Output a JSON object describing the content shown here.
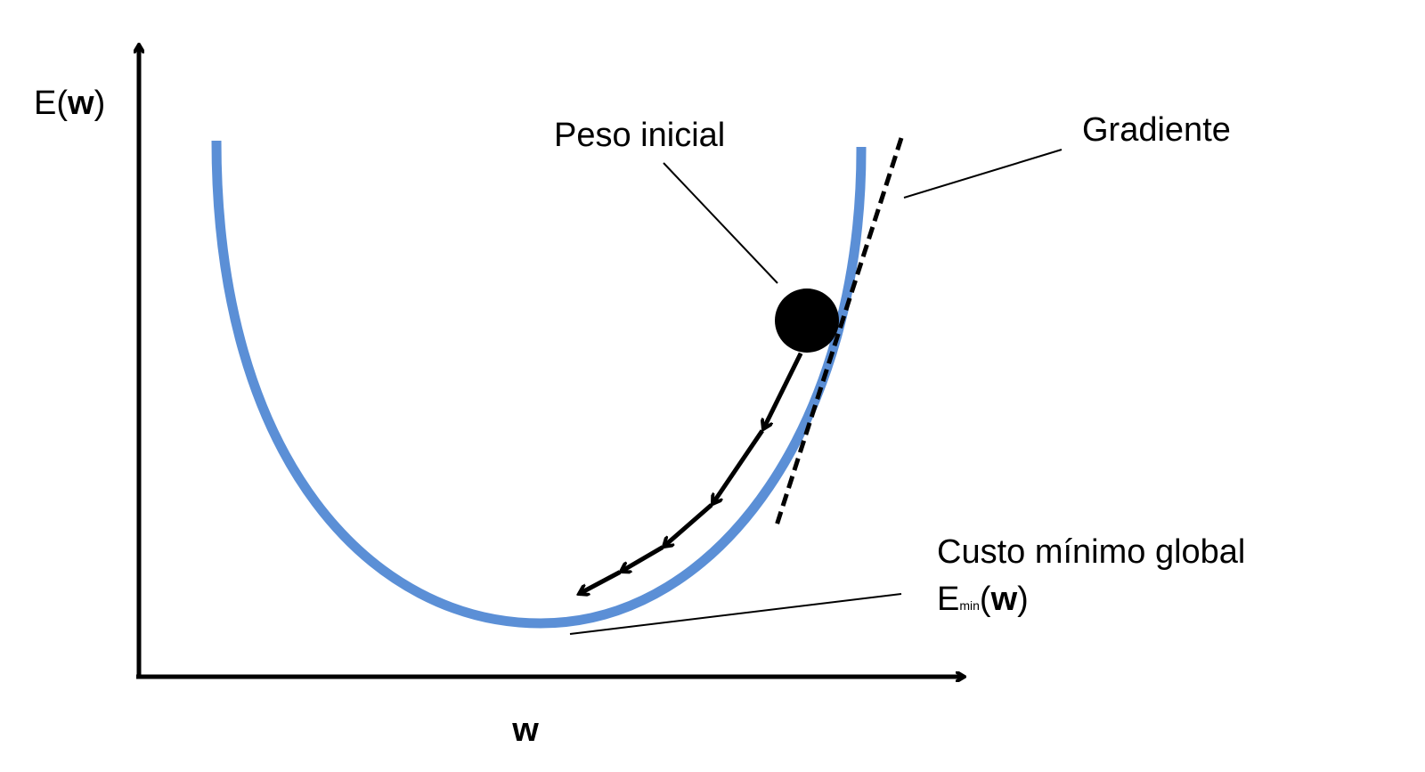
{
  "axes": {
    "y_label_prefix": "E(",
    "y_label_var": "w",
    "y_label_suffix": ")",
    "x_label": "w"
  },
  "annotations": {
    "initial_weight": "Peso inicial",
    "gradient": "Gradiente",
    "global_minimum": "Custo mínimo global",
    "emin_base": "E",
    "emin_subscript": "min",
    "emin_open": "(",
    "emin_var": "w",
    "emin_close": ")"
  },
  "colors": {
    "curve": "#5b8fd6",
    "ink": "#000000"
  },
  "steps": 5
}
